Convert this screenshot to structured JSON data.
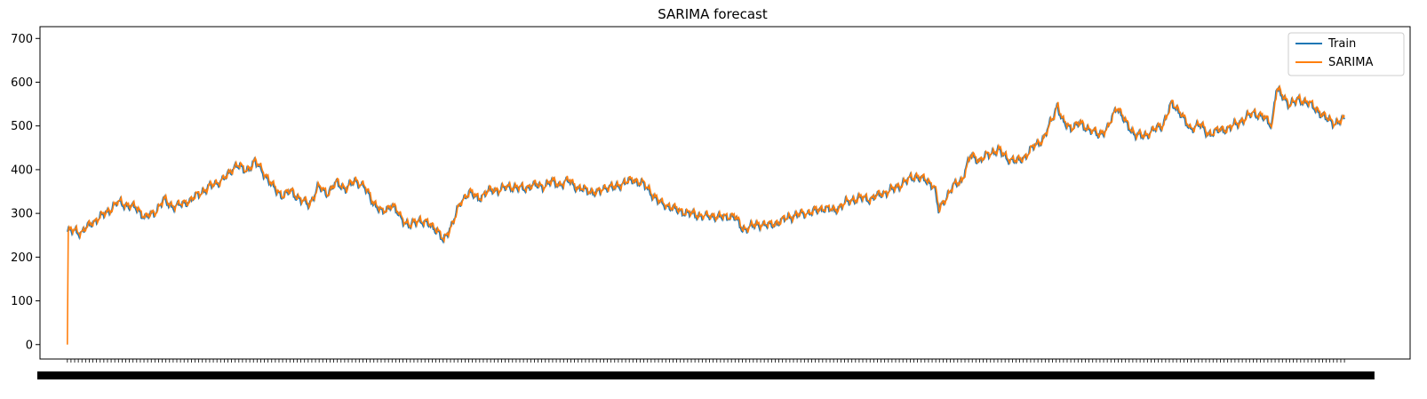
{
  "chart_data": {
    "type": "line",
    "title": "SARIMA forecast",
    "xlabel": "",
    "ylabel": "",
    "ylim": [
      -33,
      727
    ],
    "yticks": [
      0,
      100,
      200,
      300,
      400,
      500,
      600,
      700
    ],
    "x_index_range": [
      0,
      1400
    ],
    "x_tick_labels_note": "dense overlapping date labels, illegible",
    "grid": false,
    "legend": {
      "position": "top-right",
      "entries": [
        "Train",
        "SARIMA"
      ]
    },
    "colors": {
      "Train": "#1f77b4",
      "SARIMA": "#ff7f0e"
    },
    "keypoints": [
      [
        0,
        258
      ],
      [
        8,
        260
      ],
      [
        15,
        255
      ],
      [
        25,
        275
      ],
      [
        35,
        290
      ],
      [
        45,
        305
      ],
      [
        55,
        325
      ],
      [
        65,
        318
      ],
      [
        75,
        312
      ],
      [
        85,
        290
      ],
      [
        95,
        300
      ],
      [
        105,
        330
      ],
      [
        115,
        315
      ],
      [
        125,
        320
      ],
      [
        135,
        330
      ],
      [
        145,
        345
      ],
      [
        155,
        360
      ],
      [
        165,
        370
      ],
      [
        175,
        385
      ],
      [
        185,
        412
      ],
      [
        195,
        395
      ],
      [
        205,
        418
      ],
      [
        215,
        392
      ],
      [
        225,
        360
      ],
      [
        235,
        340
      ],
      [
        245,
        350
      ],
      [
        255,
        330
      ],
      [
        265,
        320
      ],
      [
        275,
        360
      ],
      [
        285,
        345
      ],
      [
        295,
        370
      ],
      [
        305,
        355
      ],
      [
        315,
        375
      ],
      [
        325,
        360
      ],
      [
        335,
        325
      ],
      [
        345,
        300
      ],
      [
        355,
        320
      ],
      [
        365,
        290
      ],
      [
        375,
        270
      ],
      [
        385,
        285
      ],
      [
        395,
        275
      ],
      [
        405,
        262
      ],
      [
        412,
        235
      ],
      [
        420,
        270
      ],
      [
        430,
        320
      ],
      [
        440,
        350
      ],
      [
        450,
        332
      ],
      [
        460,
        350
      ],
      [
        470,
        352
      ],
      [
        480,
        358
      ],
      [
        490,
        360
      ],
      [
        500,
        355
      ],
      [
        510,
        365
      ],
      [
        520,
        360
      ],
      [
        530,
        372
      ],
      [
        540,
        365
      ],
      [
        550,
        375
      ],
      [
        560,
        355
      ],
      [
        570,
        352
      ],
      [
        580,
        345
      ],
      [
        590,
        360
      ],
      [
        600,
        358
      ],
      [
        610,
        370
      ],
      [
        620,
        375
      ],
      [
        630,
        368
      ],
      [
        640,
        345
      ],
      [
        650,
        322
      ],
      [
        660,
        315
      ],
      [
        670,
        305
      ],
      [
        680,
        300
      ],
      [
        690,
        295
      ],
      [
        700,
        292
      ],
      [
        710,
        293
      ],
      [
        720,
        290
      ],
      [
        730,
        295
      ],
      [
        740,
        262
      ],
      [
        750,
        270
      ],
      [
        760,
        275
      ],
      [
        770,
        272
      ],
      [
        780,
        280
      ],
      [
        790,
        290
      ],
      [
        800,
        296
      ],
      [
        810,
        300
      ],
      [
        820,
        305
      ],
      [
        830,
        312
      ],
      [
        840,
        305
      ],
      [
        850,
        320
      ],
      [
        860,
        330
      ],
      [
        870,
        335
      ],
      [
        880,
        332
      ],
      [
        890,
        342
      ],
      [
        900,
        350
      ],
      [
        910,
        360
      ],
      [
        920,
        375
      ],
      [
        930,
        385
      ],
      [
        940,
        375
      ],
      [
        950,
        362
      ],
      [
        955,
        305
      ],
      [
        960,
        325
      ],
      [
        970,
        360
      ],
      [
        980,
        375
      ],
      [
        990,
        432
      ],
      [
        1000,
        420
      ],
      [
        1010,
        435
      ],
      [
        1020,
        445
      ],
      [
        1030,
        425
      ],
      [
        1040,
        418
      ],
      [
        1050,
        430
      ],
      [
        1060,
        455
      ],
      [
        1070,
        470
      ],
      [
        1080,
        520
      ],
      [
        1085,
        548
      ],
      [
        1090,
        510
      ],
      [
        1100,
        495
      ],
      [
        1110,
        505
      ],
      [
        1120,
        490
      ],
      [
        1130,
        480
      ],
      [
        1140,
        492
      ],
      [
        1150,
        545
      ],
      [
        1160,
        505
      ],
      [
        1170,
        480
      ],
      [
        1180,
        475
      ],
      [
        1190,
        490
      ],
      [
        1200,
        500
      ],
      [
        1210,
        550
      ],
      [
        1220,
        530
      ],
      [
        1230,
        490
      ],
      [
        1240,
        505
      ],
      [
        1250,
        480
      ],
      [
        1260,
        488
      ],
      [
        1270,
        492
      ],
      [
        1280,
        502
      ],
      [
        1290,
        515
      ],
      [
        1300,
        530
      ],
      [
        1310,
        520
      ],
      [
        1320,
        502
      ],
      [
        1325,
        585
      ],
      [
        1330,
        570
      ],
      [
        1340,
        548
      ],
      [
        1350,
        560
      ],
      [
        1360,
        552
      ],
      [
        1370,
        535
      ],
      [
        1380,
        515
      ],
      [
        1390,
        505
      ],
      [
        1400,
        515
      ]
    ]
  }
}
